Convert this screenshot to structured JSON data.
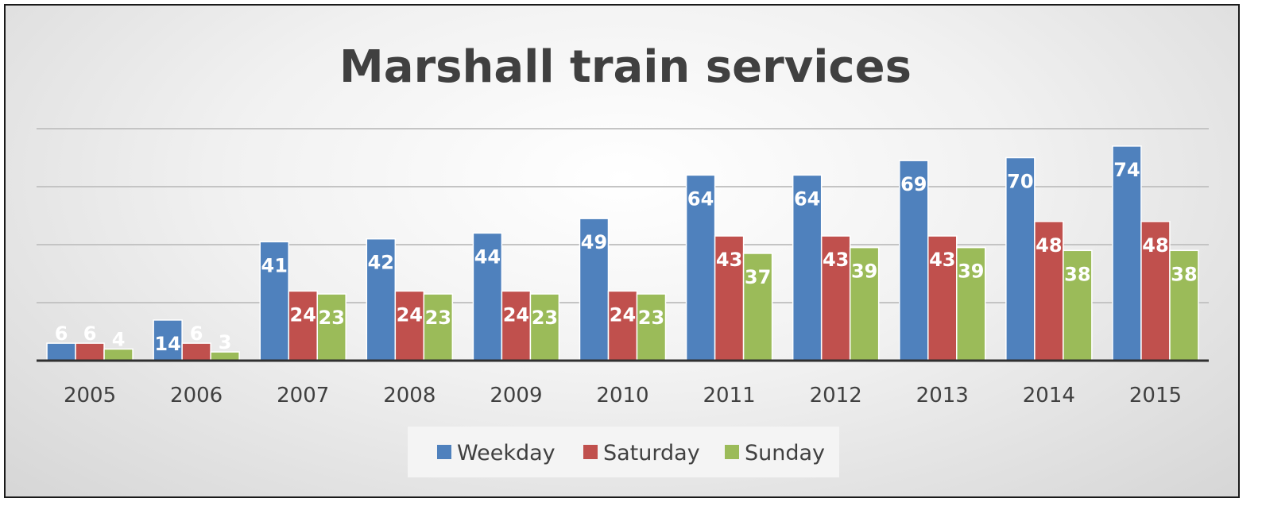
{
  "chart_data": {
    "type": "bar",
    "title": "Marshall train services",
    "categories": [
      "2005",
      "2006",
      "2007",
      "2008",
      "2009",
      "2010",
      "2011",
      "2012",
      "2013",
      "2014",
      "2015"
    ],
    "series": [
      {
        "name": "Weekday",
        "color": "#4f81bd",
        "values": [
          6,
          14,
          41,
          42,
          44,
          49,
          64,
          64,
          69,
          70,
          74
        ]
      },
      {
        "name": "Saturday",
        "color": "#c0504d",
        "values": [
          6,
          6,
          24,
          24,
          24,
          24,
          43,
          43,
          43,
          48,
          48
        ]
      },
      {
        "name": "Sunday",
        "color": "#9bbb59",
        "values": [
          4,
          3,
          23,
          23,
          23,
          23,
          37,
          39,
          39,
          38,
          38
        ]
      }
    ],
    "ylim": [
      0,
      80
    ],
    "gridlines": true,
    "data_labels": true,
    "legend_position": "bottom"
  }
}
